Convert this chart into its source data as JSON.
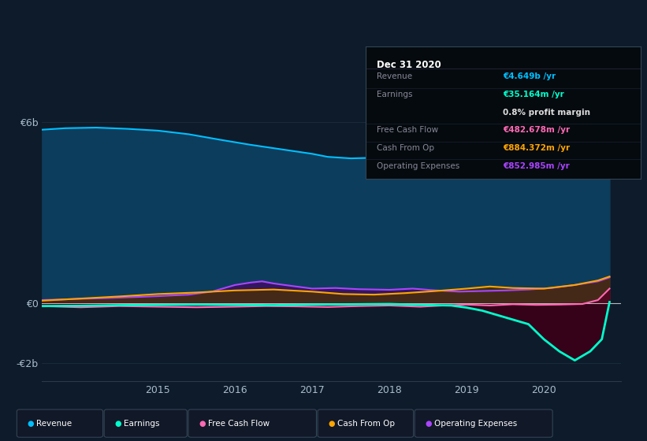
{
  "bg_color": "#0d1b2a",
  "plot_bg_color": "#0d1b2a",
  "ylim": [
    -2600000000.0,
    7200000000.0
  ],
  "xlim": [
    2013.5,
    2021.0
  ],
  "yticks": [
    6000000000.0,
    0,
    -2000000000.0
  ],
  "ytick_labels": [
    "€6b",
    "€0",
    "-€2b"
  ],
  "xticks": [
    2015,
    2016,
    2017,
    2018,
    2019,
    2020
  ],
  "xtick_labels": [
    "2015",
    "2016",
    "2017",
    "2018",
    "2019",
    "2020"
  ],
  "series": {
    "revenue": {
      "color": "#00bfff",
      "fill_color": "#0d3d5c",
      "x": [
        2013.5,
        2013.8,
        2014.2,
        2014.6,
        2015.0,
        2015.4,
        2015.8,
        2016.2,
        2016.6,
        2017.0,
        2017.2,
        2017.5,
        2017.8,
        2018.2,
        2018.6,
        2019.0,
        2019.4,
        2019.8,
        2020.0,
        2020.3,
        2020.6,
        2020.85
      ],
      "y": [
        5750000000.0,
        5800000000.0,
        5820000000.0,
        5780000000.0,
        5720000000.0,
        5600000000.0,
        5420000000.0,
        5250000000.0,
        5100000000.0,
        4950000000.0,
        4850000000.0,
        4800000000.0,
        4820000000.0,
        4850000000.0,
        4880000000.0,
        4850000000.0,
        4900000000.0,
        4880000000.0,
        4850000000.0,
        4780000000.0,
        4700000000.0,
        4650000000.0
      ]
    },
    "operating_expenses": {
      "color": "#aa44ff",
      "fill_color": "#3a1060",
      "x": [
        2013.5,
        2014.0,
        2014.5,
        2015.0,
        2015.4,
        2015.7,
        2016.0,
        2016.2,
        2016.35,
        2016.5,
        2016.7,
        2017.0,
        2017.3,
        2017.6,
        2018.0,
        2018.3,
        2018.6,
        2018.9,
        2019.2,
        2019.5,
        2019.8,
        2020.1,
        2020.4,
        2020.7,
        2020.85
      ],
      "y": [
        100000000.0,
        140000000.0,
        180000000.0,
        230000000.0,
        280000000.0,
        380000000.0,
        600000000.0,
        680000000.0,
        720000000.0,
        650000000.0,
        580000000.0,
        480000000.0,
        500000000.0,
        460000000.0,
        440000000.0,
        480000000.0,
        420000000.0,
        380000000.0,
        400000000.0,
        420000000.0,
        450000000.0,
        500000000.0,
        600000000.0,
        720000000.0,
        850000000.0
      ]
    },
    "cash_from_op": {
      "color": "#ffa500",
      "fill_color": "#4a3000",
      "x": [
        2013.5,
        2014.0,
        2014.5,
        2015.0,
        2015.5,
        2016.0,
        2016.5,
        2017.0,
        2017.4,
        2017.8,
        2018.2,
        2018.6,
        2019.0,
        2019.3,
        2019.6,
        2020.0,
        2020.4,
        2020.7,
        2020.85
      ],
      "y": [
        80000000.0,
        150000000.0,
        220000000.0,
        300000000.0,
        350000000.0,
        420000000.0,
        450000000.0,
        380000000.0,
        300000000.0,
        280000000.0,
        330000000.0,
        400000000.0,
        480000000.0,
        550000000.0,
        500000000.0,
        480000000.0,
        600000000.0,
        750000000.0,
        880000000.0
      ]
    },
    "free_cash_flow": {
      "color": "#ff69b4",
      "fill_color": "#550022",
      "x": [
        2013.5,
        2014.0,
        2014.5,
        2015.0,
        2015.5,
        2016.0,
        2016.4,
        2016.8,
        2017.2,
        2017.6,
        2018.0,
        2018.4,
        2018.7,
        2019.0,
        2019.3,
        2019.6,
        2019.9,
        2020.2,
        2020.5,
        2020.7,
        2020.85
      ],
      "y": [
        -100000000.0,
        -140000000.0,
        -100000000.0,
        -120000000.0,
        -140000000.0,
        -120000000.0,
        -100000000.0,
        -110000000.0,
        -130000000.0,
        -100000000.0,
        -80000000.0,
        -120000000.0,
        -80000000.0,
        -50000000.0,
        -80000000.0,
        -40000000.0,
        -60000000.0,
        -50000000.0,
        -30000000.0,
        100000000.0,
        480000000.0
      ]
    },
    "earnings": {
      "color": "#00ffcc",
      "fill_color": "#3a0018",
      "x": [
        2013.5,
        2014.0,
        2014.5,
        2015.0,
        2015.5,
        2016.0,
        2016.5,
        2017.0,
        2017.5,
        2018.0,
        2018.4,
        2018.8,
        2019.0,
        2019.2,
        2019.4,
        2019.6,
        2019.8,
        2020.0,
        2020.2,
        2020.4,
        2020.6,
        2020.75,
        2020.85
      ],
      "y": [
        -100000000.0,
        -90000000.0,
        -70000000.0,
        -60000000.0,
        -50000000.0,
        -60000000.0,
        -70000000.0,
        -50000000.0,
        -40000000.0,
        -30000000.0,
        -60000000.0,
        -80000000.0,
        -150000000.0,
        -250000000.0,
        -400000000.0,
        -550000000.0,
        -700000000.0,
        -1200000000.0,
        -1600000000.0,
        -1900000000.0,
        -1600000000.0,
        -1200000000.0,
        35000000.0
      ]
    }
  },
  "info_box": {
    "title": "Dec 31 2020",
    "title_color": "#ffffff",
    "bg": "#050a0e",
    "border": "#334455",
    "rows": [
      {
        "label": "Revenue",
        "value": "€4.649b /yr",
        "label_color": "#888899",
        "value_color": "#00bfff"
      },
      {
        "label": "Earnings",
        "value": "€35.164m /yr",
        "label_color": "#888899",
        "value_color": "#00ffcc"
      },
      {
        "label": "",
        "value": "0.8% profit margin",
        "label_color": "#888899",
        "value_color": "#dddddd"
      },
      {
        "label": "Free Cash Flow",
        "value": "€482.678m /yr",
        "label_color": "#888899",
        "value_color": "#ff69b4"
      },
      {
        "label": "Cash From Op",
        "value": "€884.372m /yr",
        "label_color": "#888899",
        "value_color": "#ffa500"
      },
      {
        "label": "Operating Expenses",
        "value": "€852.985m /yr",
        "label_color": "#888899",
        "value_color": "#aa44ff"
      }
    ]
  },
  "legend": [
    {
      "label": "Revenue",
      "color": "#00bfff"
    },
    {
      "label": "Earnings",
      "color": "#00ffcc"
    },
    {
      "label": "Free Cash Flow",
      "color": "#ff69b4"
    },
    {
      "label": "Cash From Op",
      "color": "#ffa500"
    },
    {
      "label": "Operating Expenses",
      "color": "#aa44ff"
    }
  ]
}
